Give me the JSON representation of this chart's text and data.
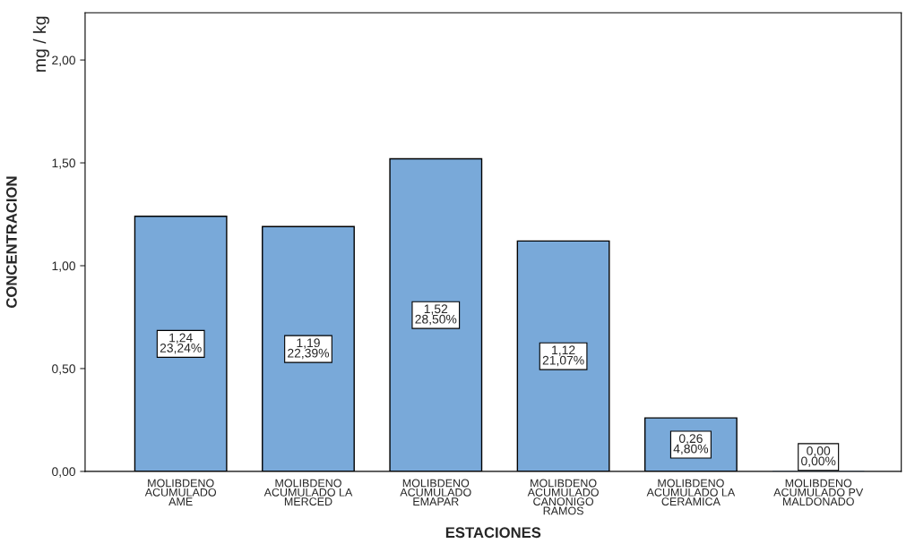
{
  "chart_data": {
    "type": "bar",
    "xlabel": "ESTACIONES",
    "ylabel": "CONCENTRACION",
    "annotations": [
      "mg / kg"
    ],
    "categories": [
      "MOLIBDENO\nACUMULADO\nAME",
      "MOLIBDENO\nACUMULADO LA\nMERCED",
      "MOLIBDENO\nACUMULADO\nEMAPAR",
      "MOLIBDENO\nACUMULADO\nCANONIGO\nRAMOS",
      "MOLIBDENO\nACUMULADO LA\nCERAMICA",
      "MOLIBDENO\nACUMULADO PV\nMALDONADO"
    ],
    "values": [
      1.24,
      1.19,
      1.52,
      1.12,
      0.26,
      0.0
    ],
    "value_labels": [
      "1,24\n23,24%",
      "1,19\n22,39%",
      "1,52\n28,50%",
      "1,12\n21,07%",
      "0,26\n4,80%",
      "0,00\n0,00%"
    ],
    "color": "#79a9d9",
    "ylim": [
      0,
      2.23
    ],
    "yticks": [
      {
        "value": 0,
        "label": "0,00"
      },
      {
        "value": 0.5,
        "label": "0,50"
      },
      {
        "value": 1.0,
        "label": "1,00"
      },
      {
        "value": 1.5,
        "label": "1,50"
      },
      {
        "value": 2.0,
        "label": "2,00"
      }
    ],
    "grid": false
  }
}
